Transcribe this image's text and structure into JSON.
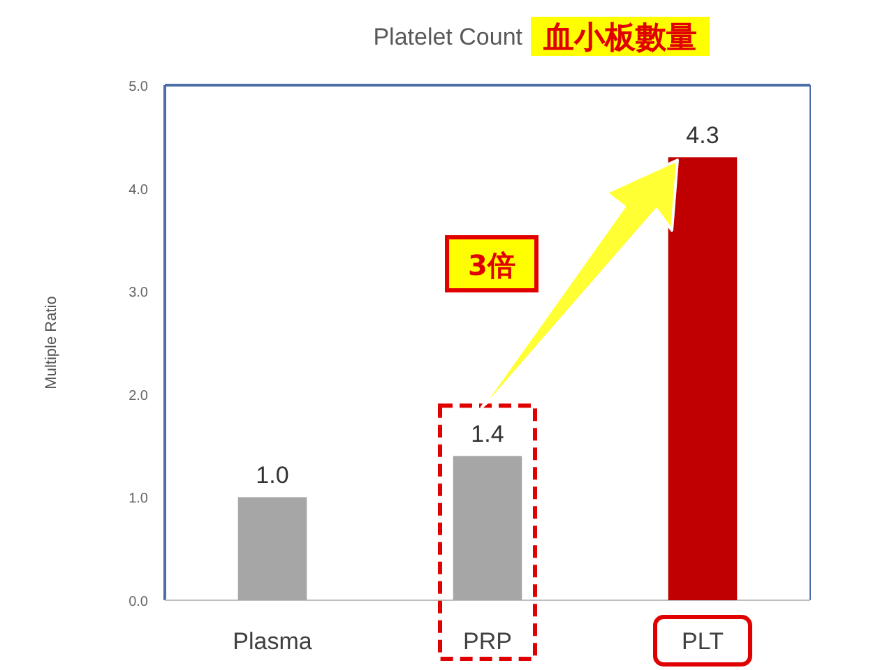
{
  "chart_data": {
    "type": "bar",
    "title": "Platelet Count 血小板數量",
    "ylabel": "Multiple Ratio",
    "categories": [
      "Plasma",
      "PRP",
      "PLT"
    ],
    "values": [
      1.0,
      1.4,
      4.3
    ],
    "colors": [
      "#a6a6a6",
      "#a6a6a6",
      "#c00000"
    ],
    "ylim": [
      0,
      5
    ],
    "yticks": [
      {
        "value": 0,
        "label": "0.0"
      },
      {
        "value": 1,
        "label": "1.0"
      },
      {
        "value": 2,
        "label": "2.0"
      },
      {
        "value": 3,
        "label": "3.0"
      },
      {
        "value": 4,
        "label": "4.0"
      },
      {
        "value": 5,
        "label": "5.0"
      }
    ],
    "value_labels": [
      "1.0",
      "1.4",
      "4.3"
    ],
    "grid": false,
    "annotations": [
      "3倍"
    ]
  }
}
